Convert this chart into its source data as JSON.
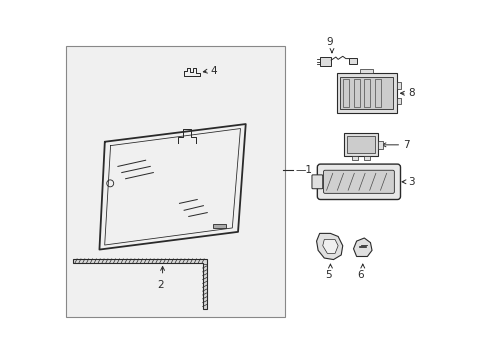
{
  "bg_color": "#ffffff",
  "panel_bg": "#f0f0f0",
  "line_color": "#2a2a2a",
  "lw": 0.9,
  "fig_w": 4.9,
  "fig_h": 3.6,
  "dpi": 100
}
